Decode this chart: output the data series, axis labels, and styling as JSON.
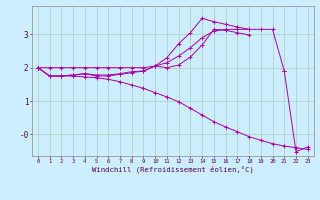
{
  "xlabel": "Windchill (Refroidissement éolien,°C)",
  "background_color": "#cceeff",
  "grid_color": "#b0d4c8",
  "line_color": "#aa00aa",
  "xlim": [
    -0.5,
    23.5
  ],
  "ylim": [
    -0.65,
    3.85
  ],
  "xtick_labels": [
    "0",
    "1",
    "2",
    "3",
    "4",
    "5",
    "6",
    "7",
    "8",
    "9",
    "10",
    "11",
    "12",
    "13",
    "14",
    "15",
    "16",
    "17",
    "18",
    "19",
    "20",
    "21",
    "22",
    "23"
  ],
  "yticks": [
    0,
    1,
    2,
    3
  ],
  "ytick_labels": [
    "-0",
    "1",
    "2",
    "3"
  ],
  "line1_x": [
    0,
    1,
    2,
    3,
    4,
    5,
    6,
    7,
    8,
    9,
    10,
    11,
    12,
    13,
    14,
    15,
    16,
    17,
    18,
    19,
    20,
    21
  ],
  "line1_y": [
    2.0,
    2.0,
    2.0,
    2.0,
    2.0,
    2.0,
    2.0,
    2.0,
    2.0,
    2.0,
    2.05,
    2.15,
    2.35,
    2.6,
    2.9,
    3.1,
    3.15,
    3.15,
    3.15,
    3.15,
    3.15,
    1.9
  ],
  "line2_x": [
    0,
    1,
    2,
    3,
    4,
    5,
    6,
    7,
    8,
    9,
    10,
    11,
    12,
    13,
    14,
    15,
    16,
    17,
    18
  ],
  "line2_y": [
    2.0,
    1.75,
    1.75,
    1.78,
    1.82,
    1.78,
    1.78,
    1.82,
    1.88,
    1.9,
    2.05,
    2.3,
    2.72,
    3.05,
    3.48,
    3.38,
    3.3,
    3.22,
    3.15
  ],
  "line3_x": [
    0,
    1,
    2,
    3,
    4,
    5,
    6,
    7,
    8,
    9,
    10,
    11,
    12,
    13,
    14,
    15,
    16,
    17,
    18
  ],
  "line3_y": [
    2.0,
    1.75,
    1.75,
    1.78,
    1.82,
    1.75,
    1.75,
    1.8,
    1.85,
    1.9,
    2.05,
    2.0,
    2.08,
    2.32,
    2.68,
    3.15,
    3.12,
    3.05,
    2.98
  ],
  "line4_x": [
    0,
    1,
    2,
    3,
    4,
    5,
    6,
    7,
    8,
    9,
    10,
    11,
    12,
    13,
    14,
    15,
    16,
    17,
    18,
    19,
    20,
    21,
    22,
    23
  ],
  "line4_y": [
    2.0,
    1.75,
    1.75,
    1.75,
    1.72,
    1.7,
    1.65,
    1.58,
    1.48,
    1.38,
    1.25,
    1.12,
    0.98,
    0.78,
    0.58,
    0.38,
    0.22,
    0.08,
    -0.07,
    -0.18,
    -0.28,
    -0.35,
    -0.4,
    -0.45
  ],
  "line5_x": [
    21,
    22,
    23
  ],
  "line5_y": [
    1.9,
    -0.52,
    -0.38
  ]
}
